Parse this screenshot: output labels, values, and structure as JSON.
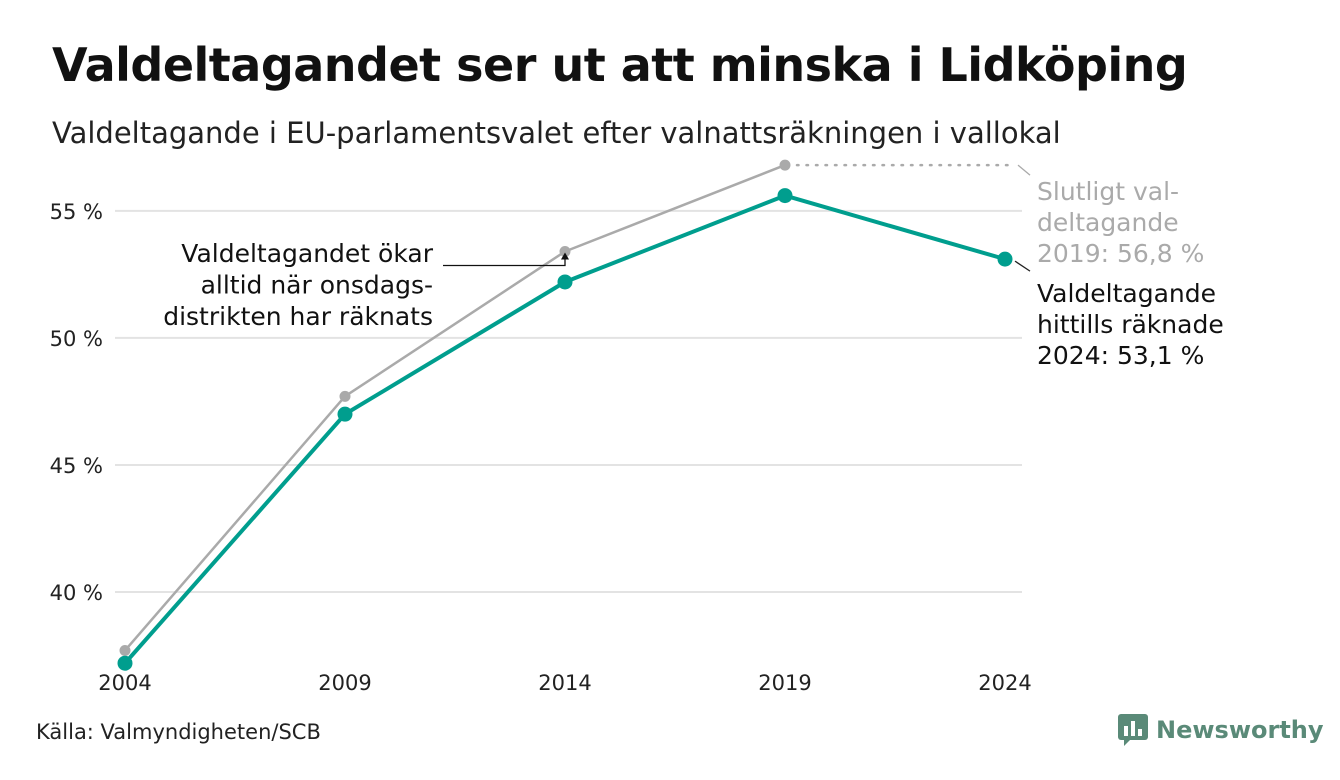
{
  "title": "Valdeltagandet ser ut att minska i Lidköping",
  "subtitle": "Valdeltagande i EU-parlamentsvalet efter valnattsräkningen i vallokal",
  "source": "Källa: Valmyndigheten/SCB",
  "brand": "Newsworthy",
  "colors": {
    "current": "#009E8E",
    "final": "#AAAAAA",
    "grid": "#E3E3E3",
    "brand": "#5A8A78"
  },
  "chart_data": {
    "type": "line",
    "x": [
      "2004",
      "2009",
      "2014",
      "2019",
      "2024"
    ],
    "y_ticks": [
      {
        "value": 40,
        "label": "40 %"
      },
      {
        "value": 45,
        "label": "45 %"
      },
      {
        "value": 50,
        "label": "50 %"
      },
      {
        "value": 55,
        "label": "55 %"
      }
    ],
    "ylim": [
      36.5,
      57
    ],
    "series": [
      {
        "key": "final",
        "values": [
          37.7,
          47.7,
          53.4,
          56.8,
          null
        ]
      },
      {
        "key": "current",
        "values": [
          37.2,
          47.0,
          52.2,
          55.6,
          53.1
        ]
      }
    ],
    "annotations": {
      "left_note": [
        "Valdeltagandet ökar",
        "alltid när onsdags-",
        "distrikten har räknats"
      ],
      "final_label": [
        "Slutligt val-",
        "deltagande",
        "2019: 56,8 %"
      ],
      "current_label": [
        "Valdeltagande",
        "hittills räknade",
        "2024: 53,1 %"
      ]
    }
  }
}
